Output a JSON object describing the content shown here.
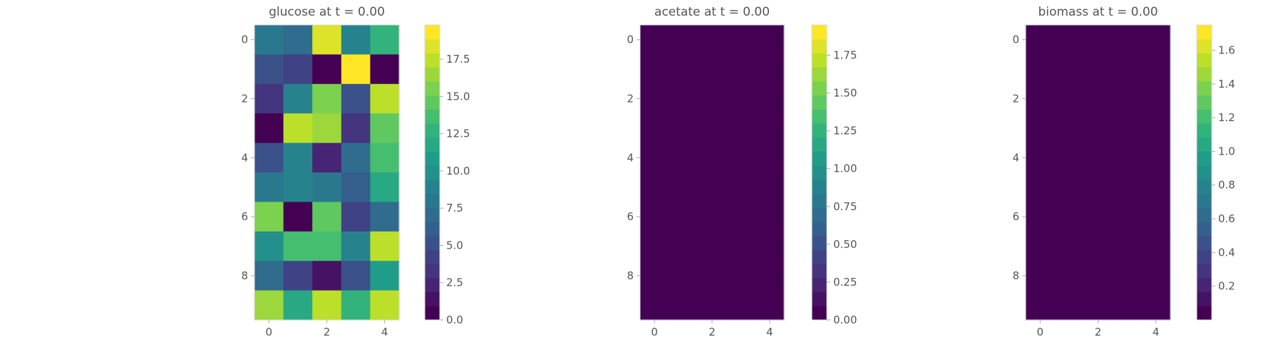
{
  "chart_data": [
    {
      "type": "heatmap",
      "title": "glucose at t = 0.00",
      "x_ticks": [
        "0",
        "2",
        "4"
      ],
      "y_ticks": [
        "0",
        "2",
        "4",
        "6",
        "8"
      ],
      "colorbar_ticks": [
        "0.0",
        "2.5",
        "5.0",
        "7.5",
        "10.0",
        "12.5",
        "15.0",
        "17.5"
      ],
      "colorbar_range": [
        0,
        19.8
      ],
      "rows": 10,
      "cols": 5,
      "values": [
        [
          8.2,
          6.9,
          18.7,
          8.6,
          12.5
        ],
        [
          5.5,
          4.1,
          0.9,
          19.8,
          0.0
        ],
        [
          3.1,
          8.8,
          15.5,
          5.6,
          17.4
        ],
        [
          0.8,
          17.3,
          16.4,
          3.6,
          15.0
        ],
        [
          5.5,
          9.1,
          2.6,
          7.1,
          14.0
        ],
        [
          7.7,
          8.9,
          8.0,
          5.8,
          12.1
        ],
        [
          15.6,
          0.0,
          14.2,
          4.2,
          6.8
        ],
        [
          9.9,
          13.8,
          13.9,
          9.1,
          17.4
        ],
        [
          7.1,
          4.4,
          1.5,
          5.3,
          10.5
        ],
        [
          16.4,
          12.2,
          17.3,
          12.4,
          17.9
        ]
      ]
    },
    {
      "type": "heatmap",
      "title": "acetate at t = 0.00",
      "x_ticks": [
        "0",
        "2",
        "4"
      ],
      "y_ticks": [
        "0",
        "2",
        "4",
        "6",
        "8"
      ],
      "colorbar_ticks": [
        "0.00",
        "0.25",
        "0.50",
        "0.75",
        "1.00",
        "1.25",
        "1.50",
        "1.75"
      ],
      "colorbar_range": [
        0,
        1.95
      ],
      "rows": 10,
      "cols": 5,
      "values": [
        [
          0,
          0,
          0,
          0,
          0
        ],
        [
          0,
          0,
          0,
          0,
          0
        ],
        [
          0,
          0,
          0,
          0,
          0
        ],
        [
          0,
          0,
          0,
          0,
          0
        ],
        [
          0,
          0,
          0,
          0,
          0
        ],
        [
          0,
          0,
          0,
          0,
          0
        ],
        [
          0,
          0,
          0,
          0,
          0
        ],
        [
          0,
          0,
          0,
          0,
          0
        ],
        [
          0,
          0,
          0,
          0,
          0
        ],
        [
          0,
          0,
          0,
          0,
          0
        ]
      ]
    },
    {
      "type": "heatmap",
      "title": "biomass at t = 0.00",
      "x_ticks": [
        "0",
        "2",
        "4"
      ],
      "y_ticks": [
        "0",
        "2",
        "4",
        "6",
        "8"
      ],
      "colorbar_ticks": [
        "0.2",
        "0.4",
        "0.6",
        "0.8",
        "1.0",
        "1.2",
        "1.4",
        "1.6"
      ],
      "colorbar_range": [
        0,
        1.75
      ],
      "rows": 10,
      "cols": 5,
      "values": [
        [
          0.06,
          0.07,
          0.05,
          0.06,
          0.0
        ],
        [
          0.0,
          0.05,
          0.06,
          0.0,
          0.0
        ],
        [
          0.0,
          0.0,
          0.0,
          0.05,
          0.0
        ],
        [
          0.0,
          0.04,
          0.0,
          0.0,
          0.0
        ],
        [
          0.05,
          0.0,
          0.05,
          0.05,
          0.0
        ],
        [
          0.0,
          0.0,
          0.0,
          0.0,
          0.0
        ],
        [
          0.0,
          0.0,
          0.0,
          0.0,
          0.0
        ],
        [
          0.0,
          0.0,
          0.0,
          0.05,
          0.05
        ],
        [
          0.06,
          0.05,
          0.06,
          0.0,
          0.04
        ],
        [
          0.05,
          0.0,
          0.03,
          0.0,
          0.05
        ]
      ]
    }
  ],
  "colormap": {
    "name": "viridis",
    "levels": 21,
    "stops": [
      "#440154",
      "#482878",
      "#3e4989",
      "#31688e",
      "#26828e",
      "#1f9e89",
      "#35b779",
      "#6ece58",
      "#b5de2b",
      "#fde725"
    ]
  },
  "style": {
    "text_color": "#555555",
    "frame_color": "#d8d8d8",
    "tick_color": "#aaaaaa"
  }
}
